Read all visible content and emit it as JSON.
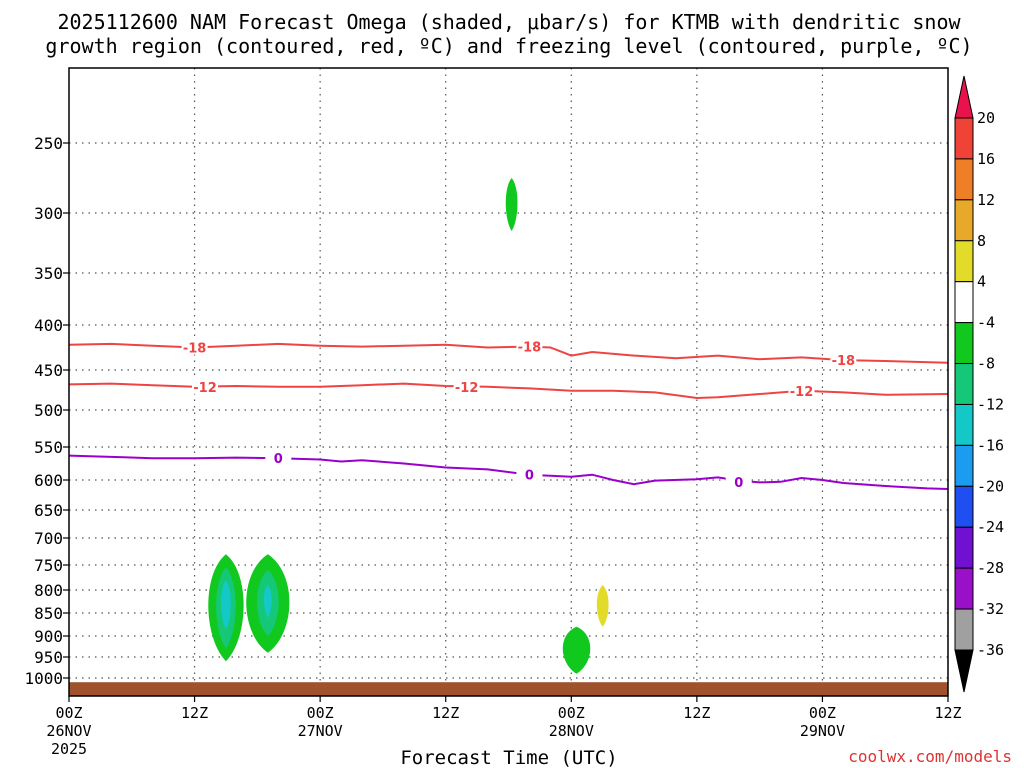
{
  "title_line1": "2025112600 NAM Forecast Omega (shaded, μbar/s) for KTMB with dendritic snow",
  "title_line2": "growth region (contoured, red, ºC) and freezing level (contoured, purple, ºC)",
  "credit": "coolwx.com/models",
  "chart_data": {
    "type": "time-height",
    "title": "2025112600 NAM Forecast Omega (shaded, μbar/s) for KTMB with dendritic snow growth region (contoured, red, ºC) and freezing level (contoured, purple, ºC)",
    "xlabel": "Forecast Time (UTC)",
    "ylabel": "",
    "x_range_hours": [
      0,
      84
    ],
    "y_range_hpa": [
      1025,
      200
    ],
    "x_ticks": [
      {
        "h": 0,
        "l1": "00Z",
        "l2": "26NOV",
        "l3": "2025"
      },
      {
        "h": 12,
        "l1": "12Z",
        "l2": "",
        "l3": ""
      },
      {
        "h": 24,
        "l1": "00Z",
        "l2": "27NOV",
        "l3": ""
      },
      {
        "h": 36,
        "l1": "12Z",
        "l2": "",
        "l3": ""
      },
      {
        "h": 48,
        "l1": "00Z",
        "l2": "28NOV",
        "l3": ""
      },
      {
        "h": 60,
        "l1": "12Z",
        "l2": "",
        "l3": ""
      },
      {
        "h": 72,
        "l1": "00Z",
        "l2": "29NOV",
        "l3": ""
      },
      {
        "h": 84,
        "l1": "12Z",
        "l2": "",
        "l3": ""
      }
    ],
    "y_ticks": [
      250,
      300,
      350,
      400,
      450,
      500,
      550,
      600,
      650,
      700,
      750,
      800,
      850,
      900,
      950,
      1000
    ],
    "colorbar": {
      "labels": [
        "20",
        "16",
        "12",
        "8",
        "4",
        "-4",
        "-8",
        "-12",
        "-16",
        "-20",
        "-24",
        "-28",
        "-32",
        "-36"
      ],
      "colors": [
        "#e8134d",
        "#f04338",
        "#ef7f27",
        "#e8a92b",
        "#e3db2a",
        "#ffffff",
        "#10c81e",
        "#14c878",
        "#14c8c8",
        "#1c9cf0",
        "#1f4ff0",
        "#7010d0",
        "#9a10c8",
        "#a0a0a0",
        "#000000"
      ]
    },
    "contours": [
      {
        "name": "-18",
        "color": "#ee4444",
        "points": [
          [
            0,
            422
          ],
          [
            4,
            421
          ],
          [
            8,
            423
          ],
          [
            12,
            425
          ],
          [
            16,
            423
          ],
          [
            20,
            421
          ],
          [
            24,
            423
          ],
          [
            28,
            424
          ],
          [
            32,
            423
          ],
          [
            36,
            422
          ],
          [
            40,
            425
          ],
          [
            44,
            424
          ],
          [
            46,
            425
          ],
          [
            48,
            434
          ],
          [
            50,
            430
          ],
          [
            54,
            434
          ],
          [
            58,
            437
          ],
          [
            62,
            434
          ],
          [
            66,
            438
          ],
          [
            70,
            436
          ],
          [
            74,
            439
          ],
          [
            78,
            440
          ],
          [
            84,
            442
          ]
        ],
        "labels": [
          [
            12,
            425
          ],
          [
            44,
            424
          ],
          [
            74,
            439
          ]
        ]
      },
      {
        "name": "-12",
        "color": "#ee4444",
        "points": [
          [
            0,
            468
          ],
          [
            4,
            467
          ],
          [
            8,
            469
          ],
          [
            12,
            471
          ],
          [
            16,
            470
          ],
          [
            20,
            471
          ],
          [
            24,
            471
          ],
          [
            28,
            469
          ],
          [
            32,
            467
          ],
          [
            36,
            470
          ],
          [
            40,
            471
          ],
          [
            44,
            473
          ],
          [
            48,
            476
          ],
          [
            52,
            476
          ],
          [
            56,
            478
          ],
          [
            60,
            485
          ],
          [
            62,
            484
          ],
          [
            66,
            480
          ],
          [
            70,
            476
          ],
          [
            74,
            478
          ],
          [
            78,
            481
          ],
          [
            84,
            480
          ]
        ],
        "labels": [
          [
            13,
            471
          ],
          [
            38,
            471
          ],
          [
            70,
            476
          ]
        ]
      },
      {
        "name": "0",
        "color": "#9900cc",
        "points": [
          [
            0,
            563
          ],
          [
            4,
            565
          ],
          [
            8,
            567
          ],
          [
            12,
            567
          ],
          [
            16,
            566
          ],
          [
            20,
            567
          ],
          [
            24,
            569
          ],
          [
            26,
            572
          ],
          [
            28,
            570
          ],
          [
            32,
            575
          ],
          [
            36,
            581
          ],
          [
            40,
            584
          ],
          [
            44,
            592
          ],
          [
            48,
            595
          ],
          [
            50,
            592
          ],
          [
            52,
            600
          ],
          [
            54,
            607
          ],
          [
            56,
            601
          ],
          [
            60,
            599
          ],
          [
            62,
            596
          ],
          [
            64,
            601
          ],
          [
            66,
            604
          ],
          [
            68,
            603
          ],
          [
            70,
            597
          ],
          [
            72,
            600
          ],
          [
            74,
            605
          ],
          [
            78,
            610
          ],
          [
            82,
            614
          ],
          [
            84,
            615
          ]
        ],
        "labels": [
          [
            20,
            567
          ],
          [
            44,
            592
          ],
          [
            64,
            603
          ]
        ]
      }
    ],
    "omega_features": [
      {
        "value_class": "-4 to -8",
        "color": "#10c81e",
        "center_h": 42.3,
        "center_p": 292,
        "half_width_h": 0.6,
        "top_p": 275,
        "bottom_p": 315
      },
      {
        "value_class": "-4 to -8",
        "color": "#10c81e",
        "center_h": 15.0,
        "center_p": 830,
        "half_width_h": 1.8,
        "top_p": 730,
        "bottom_p": 960
      },
      {
        "value_class": "-8 to -12",
        "color": "#14c878",
        "center_h": 15.0,
        "center_p": 830,
        "half_width_h": 1.0,
        "top_p": 755,
        "bottom_p": 930
      },
      {
        "value_class": "-12 to -16",
        "color": "#14c8c8",
        "center_h": 15.0,
        "center_p": 830,
        "half_width_h": 0.5,
        "top_p": 780,
        "bottom_p": 885
      },
      {
        "value_class": "-4 to -8",
        "color": "#10c81e",
        "center_h": 19.0,
        "center_p": 830,
        "half_width_h": 2.2,
        "top_p": 730,
        "bottom_p": 940
      },
      {
        "value_class": "-8 to -12",
        "color": "#14c878",
        "center_h": 19.0,
        "center_p": 825,
        "half_width_h": 1.1,
        "top_p": 760,
        "bottom_p": 900
      },
      {
        "value_class": "-12 to -16",
        "color": "#14c8c8",
        "center_h": 19.0,
        "center_p": 820,
        "half_width_h": 0.4,
        "top_p": 790,
        "bottom_p": 860
      },
      {
        "value_class": "-4 to -8",
        "color": "#10c81e",
        "center_h": 48.5,
        "center_p": 925,
        "half_width_h": 1.4,
        "top_p": 880,
        "bottom_p": 990
      },
      {
        "value_class": "4 to 8",
        "color": "#e3db2a",
        "center_h": 51.0,
        "center_p": 830,
        "half_width_h": 0.6,
        "top_p": 790,
        "bottom_p": 880
      }
    ],
    "ground": {
      "color": "#a0522d",
      "top_p": 1010,
      "bottom_p": 1025
    }
  }
}
